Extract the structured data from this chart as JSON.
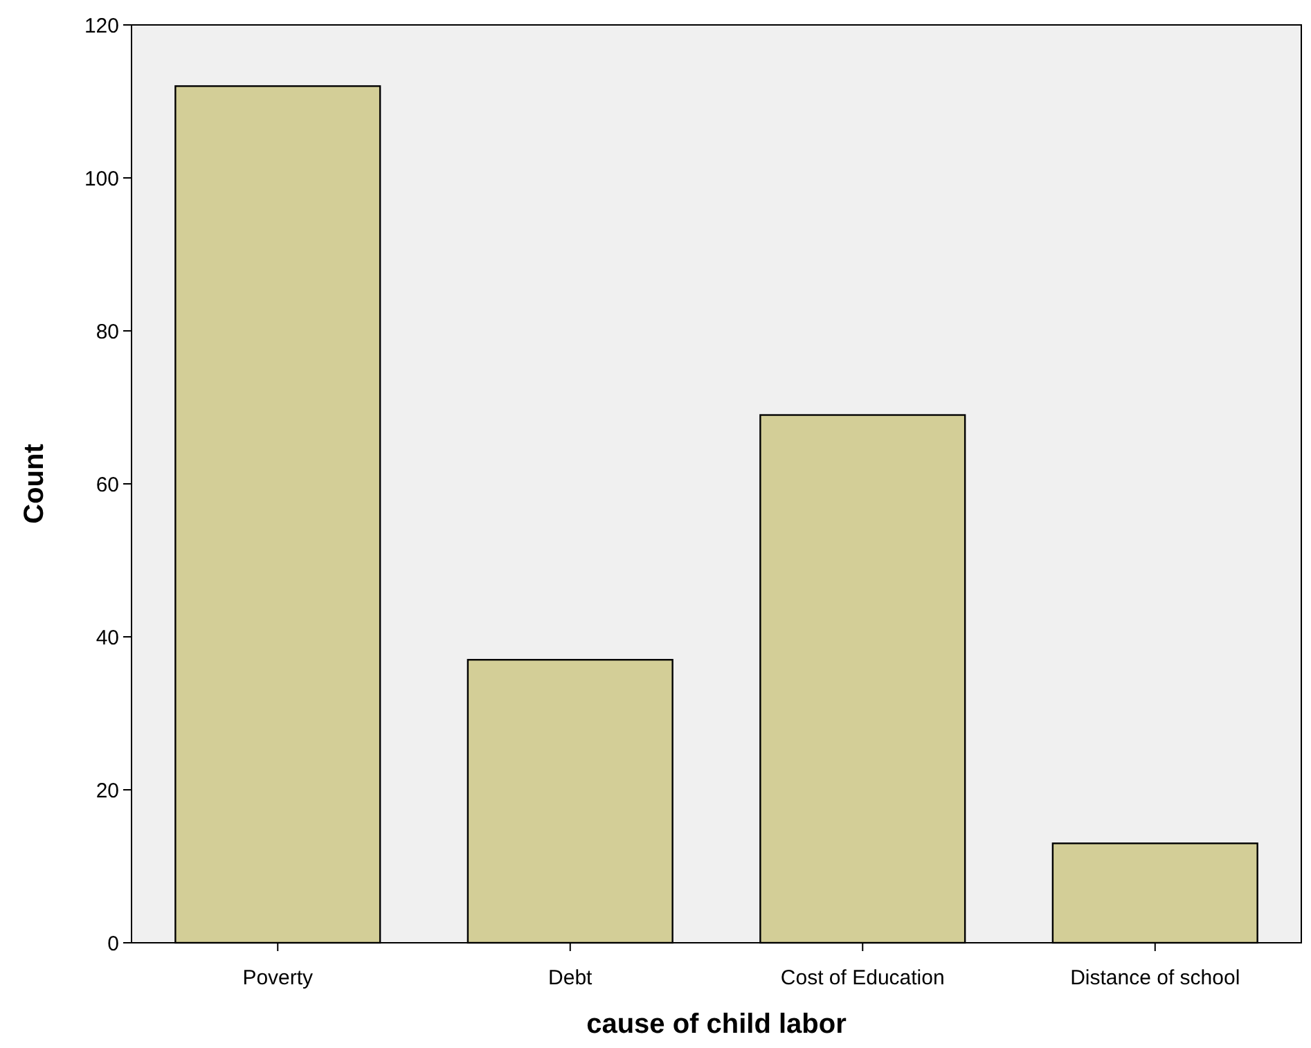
{
  "chart_data": {
    "type": "bar",
    "xlabel": "cause of child labor",
    "ylabel": "Count",
    "categories": [
      "Poverty",
      "Debt",
      "Cost of Education",
      "Distance of school"
    ],
    "values": [
      112,
      37,
      69,
      13
    ],
    "color": "#d3ce97",
    "ylim": [
      0,
      120
    ],
    "yticks": [
      0,
      20,
      40,
      60,
      80,
      100,
      120
    ],
    "grid": false
  }
}
